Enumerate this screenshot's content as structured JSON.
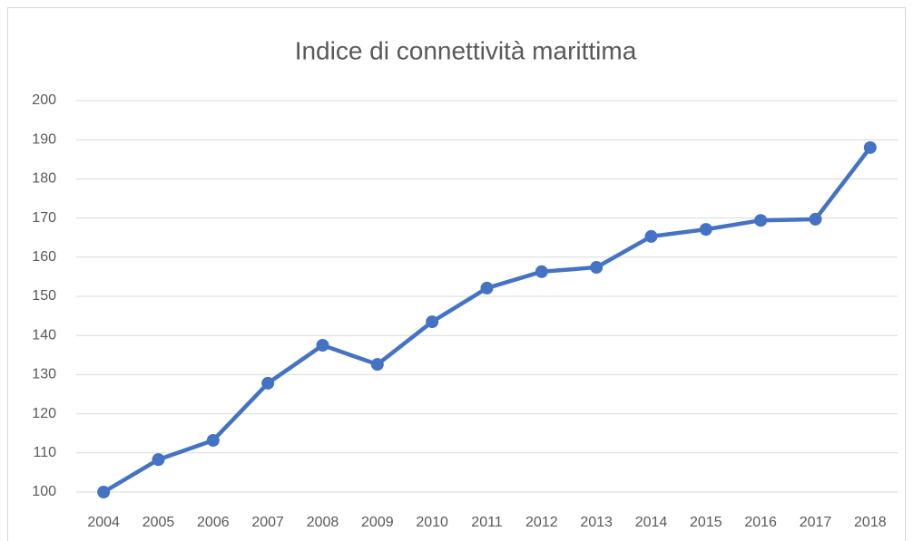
{
  "chart_data": {
    "type": "line",
    "title": "Indice di connettività marittima",
    "categories": [
      "2004",
      "2005",
      "2006",
      "2007",
      "2008",
      "2009",
      "2010",
      "2011",
      "2012",
      "2013",
      "2014",
      "2015",
      "2016",
      "2017",
      "2018"
    ],
    "values": [
      100,
      108.3,
      113.2,
      127.8,
      137.5,
      132.6,
      143.5,
      152.1,
      156.3,
      157.4,
      165.3,
      167.1,
      169.4,
      169.7,
      188
    ],
    "color": "#4472c4",
    "ylim": [
      100,
      200
    ],
    "yticks": [
      100,
      110,
      120,
      130,
      140,
      150,
      160,
      170,
      180,
      190,
      200
    ],
    "grid": true
  }
}
